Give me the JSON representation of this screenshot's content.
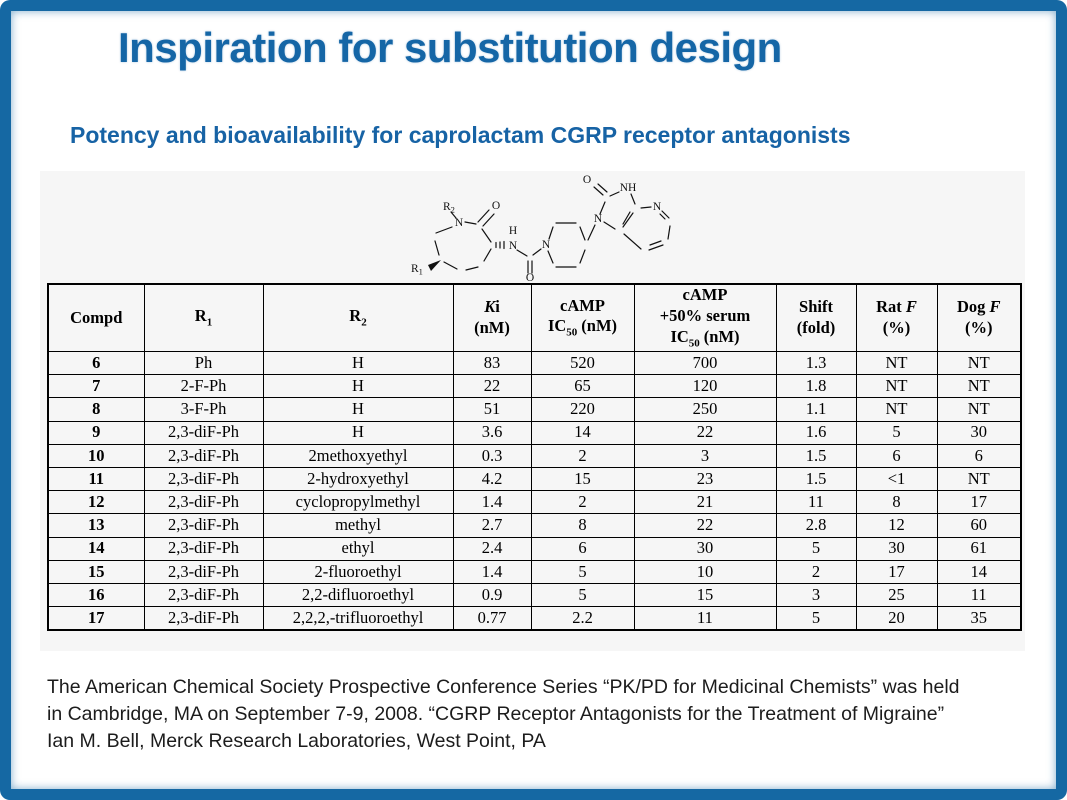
{
  "slide": {
    "title": "Inspiration for substitution design",
    "subtitle": "Potency and bioavailability for caprolactam CGRP receptor antagonists",
    "footer_lines": [
      "The American Chemical Society Prospective Conference Series “PK/PD for Medicinal Chemists” was held",
      "in Cambridge, MA on September 7-9, 2008. “CGRP Receptor Antagonists for the Treatment of Migraine”",
      "Ian M. Bell, Merck Research Laboratories, West Point, PA"
    ],
    "colors": {
      "frame_blue": "#1568a3",
      "title_blue": "#1566a6",
      "subtitle_blue": "#1763a5"
    }
  },
  "structure": {
    "labels": {
      "r": "R",
      "sub1": "1",
      "sub2": "2",
      "n": "N",
      "o": "O",
      "h": "H",
      "nh": "NH"
    }
  },
  "table": {
    "headers": {
      "compd": "Compd",
      "r1": {
        "base": "R",
        "sub": "1"
      },
      "r2": {
        "base": "R",
        "sub": "2"
      },
      "ki": {
        "k": "K",
        "i": "i",
        "unit": "(nM)"
      },
      "camp": {
        "line1": "cAMP",
        "ic": "IC",
        "sub": "50",
        "unit": "(nM)"
      },
      "camp_serum": {
        "line1": "cAMP",
        "line2": "+50% serum",
        "ic": "IC",
        "sub": "50",
        "unit": "(nM)"
      },
      "shift": {
        "line1": "Shift",
        "line2": "(fold)"
      },
      "rat_f": {
        "animal": "Rat",
        "f": "F",
        "unit": "(%)"
      },
      "dog_f": {
        "animal": "Dog",
        "f": "F",
        "unit": "(%)"
      }
    },
    "rows": [
      {
        "compd": "6",
        "r1": "Ph",
        "r2": "H",
        "ki": "83",
        "camp": "520",
        "camp_serum": "700",
        "shift": "1.3",
        "rat_f": "NT",
        "dog_f": "NT"
      },
      {
        "compd": "7",
        "r1": "2-F-Ph",
        "r2": "H",
        "ki": "22",
        "camp": "65",
        "camp_serum": "120",
        "shift": "1.8",
        "rat_f": "NT",
        "dog_f": "NT"
      },
      {
        "compd": "8",
        "r1": "3-F-Ph",
        "r2": "H",
        "ki": "51",
        "camp": "220",
        "camp_serum": "250",
        "shift": "1.1",
        "rat_f": "NT",
        "dog_f": "NT"
      },
      {
        "compd": "9",
        "r1": "2,3-diF-Ph",
        "r2": "H",
        "ki": "3.6",
        "camp": "14",
        "camp_serum": "22",
        "shift": "1.6",
        "rat_f": "5",
        "dog_f": "30"
      },
      {
        "compd": "10",
        "r1": "2,3-diF-Ph",
        "r2": "2methoxyethyl",
        "ki": "0.3",
        "camp": "2",
        "camp_serum": "3",
        "shift": "1.5",
        "rat_f": "6",
        "dog_f": "6"
      },
      {
        "compd": "11",
        "r1": "2,3-diF-Ph",
        "r2": "2-hydroxyethyl",
        "ki": "4.2",
        "camp": "15",
        "camp_serum": "23",
        "shift": "1.5",
        "rat_f": "<1",
        "dog_f": "NT"
      },
      {
        "compd": "12",
        "r1": "2,3-diF-Ph",
        "r2": "cyclopropylmethyl",
        "ki": "1.4",
        "camp": "2",
        "camp_serum": "21",
        "shift": "11",
        "rat_f": "8",
        "dog_f": "17"
      },
      {
        "compd": "13",
        "r1": "2,3-diF-Ph",
        "r2": "methyl",
        "ki": "2.7",
        "camp": "8",
        "camp_serum": "22",
        "shift": "2.8",
        "rat_f": "12",
        "dog_f": "60"
      },
      {
        "compd": "14",
        "r1": "2,3-diF-Ph",
        "r2": "ethyl",
        "ki": "2.4",
        "camp": "6",
        "camp_serum": "30",
        "shift": "5",
        "rat_f": "30",
        "dog_f": "61"
      },
      {
        "compd": "15",
        "r1": "2,3-diF-Ph",
        "r2": "2-fluoroethyl",
        "ki": "1.4",
        "camp": "5",
        "camp_serum": "10",
        "shift": "2",
        "rat_f": "17",
        "dog_f": "14"
      },
      {
        "compd": "16",
        "r1": "2,3-diF-Ph",
        "r2": "2,2-difluoroethyl",
        "ki": "0.9",
        "camp": "5",
        "camp_serum": "15",
        "shift": "3",
        "rat_f": "25",
        "dog_f": "11"
      },
      {
        "compd": "17",
        "r1": "2,3-diF-Ph",
        "r2": "2,2,2,-trifluoroethyl",
        "ki": "0.77",
        "camp": "2.2",
        "camp_serum": "11",
        "shift": "5",
        "rat_f": "20",
        "dog_f": "35"
      }
    ]
  }
}
